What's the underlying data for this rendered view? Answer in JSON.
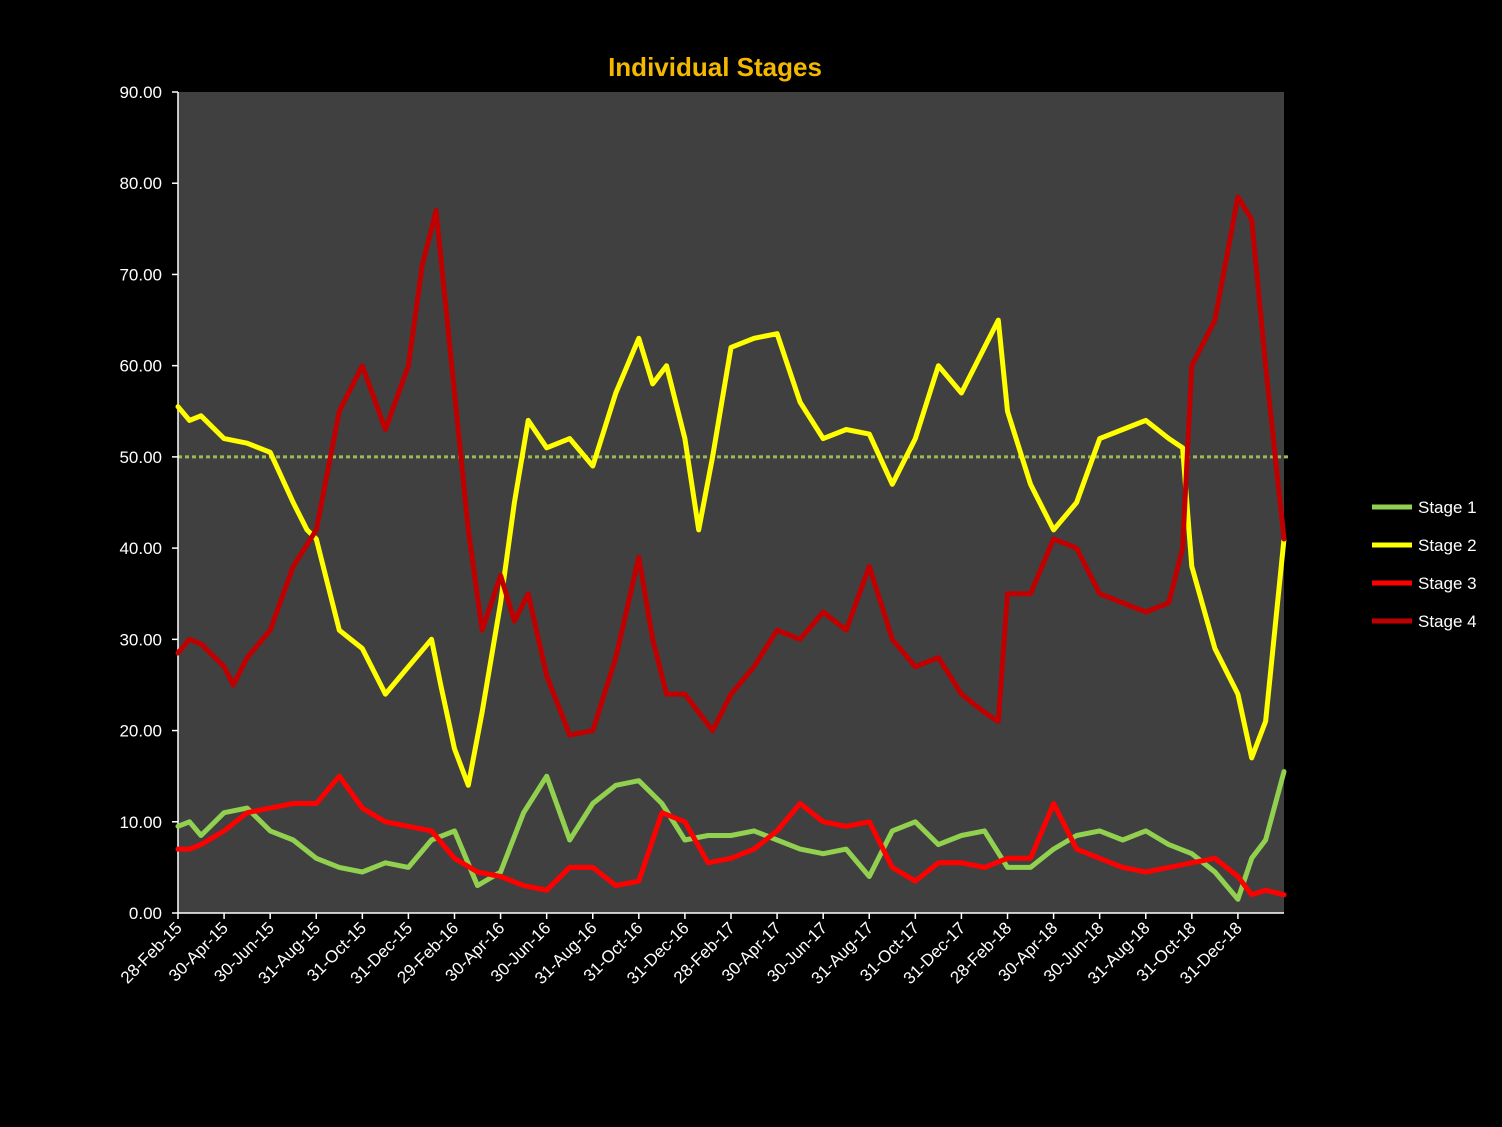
{
  "chart_data": {
    "type": "line",
    "title": "Individual Stages",
    "xlabel": "",
    "ylabel": "",
    "ylim": [
      0,
      90
    ],
    "y_ticks": [
      "0.00",
      "10.00",
      "20.00",
      "30.00",
      "40.00",
      "50.00",
      "60.00",
      "70.00",
      "80.00",
      "90.00"
    ],
    "x_tick_labels": [
      "28-Feb-15",
      "30-Apr-15",
      "30-Jun-15",
      "31-Aug-15",
      "31-Oct-15",
      "31-Dec-15",
      "29-Feb-16",
      "30-Apr-16",
      "30-Jun-16",
      "31-Aug-16",
      "31-Oct-16",
      "31-Dec-16",
      "28-Feb-17",
      "30-Apr-17",
      "30-Jun-17",
      "31-Aug-17",
      "31-Oct-17",
      "31-Dec-17",
      "28-Feb-18",
      "30-Apr-18",
      "30-Jun-18",
      "31-Aug-18",
      "31-Oct-18",
      "31-Dec-18"
    ],
    "reference_line": {
      "y": 50,
      "color": "#9bbb59",
      "style": "dotted"
    },
    "plot_background": "#404040",
    "grid": false,
    "legend_position": "right",
    "x_range": [
      0,
      24
    ],
    "series": [
      {
        "name": "Stage 1",
        "color": "#92d050",
        "x": [
          0,
          0.25,
          0.5,
          1,
          1.5,
          2,
          2.5,
          3,
          3.5,
          4,
          4.5,
          5,
          5.5,
          6,
          6.5,
          7,
          7.5,
          8,
          8.5,
          9,
          9.5,
          10,
          10.5,
          11,
          11.5,
          12,
          12.5,
          13,
          13.5,
          14,
          14.5,
          15,
          15.5,
          16,
          16.5,
          17,
          17.5,
          18,
          18.5,
          19,
          19.5,
          20,
          20.5,
          21,
          21.5,
          22,
          22.5,
          23,
          23.3,
          23.6,
          24
        ],
        "y": [
          9.5,
          10,
          8.5,
          11,
          11.5,
          9,
          8,
          6,
          5,
          4.5,
          5.5,
          5,
          8,
          9,
          3,
          4.5,
          11,
          15,
          8,
          12,
          14,
          14.5,
          12,
          8,
          8.5,
          8.5,
          9,
          8,
          7,
          6.5,
          7,
          4,
          9,
          10,
          7.5,
          8.5,
          9,
          5,
          5,
          7,
          8.5,
          9,
          8,
          9,
          7.5,
          6.5,
          4.5,
          1.5,
          6,
          8,
          15.5
        ]
      },
      {
        "name": "Stage 2",
        "color": "#ffff00",
        "x": [
          0,
          0.25,
          0.5,
          1,
          1.5,
          2,
          2.5,
          2.8,
          3,
          3.5,
          4,
          4.5,
          5,
          5.5,
          5.7,
          6,
          6.3,
          6.6,
          7,
          7.3,
          7.6,
          8,
          8.5,
          9,
          9.5,
          10,
          10.3,
          10.6,
          11,
          11.3,
          11.6,
          12,
          12.5,
          13,
          13.5,
          14,
          14.5,
          15,
          15.5,
          16,
          16.5,
          17,
          17.5,
          17.8,
          18,
          18.5,
          19,
          19.5,
          20,
          20.5,
          21,
          21.5,
          21.8,
          22,
          22.5,
          23,
          23.3,
          23.6,
          24
        ],
        "y": [
          55.5,
          54,
          54.5,
          52,
          51.5,
          50.5,
          45,
          42,
          41,
          31,
          29,
          24,
          27,
          30,
          25,
          18,
          14,
          22,
          34,
          45,
          54,
          51,
          52,
          49,
          57,
          63,
          58,
          60,
          52,
          42,
          50,
          62,
          63,
          63.5,
          56,
          52,
          53,
          52.5,
          47,
          52,
          60,
          57,
          62,
          65,
          55,
          47,
          42,
          45,
          52,
          53,
          54,
          52,
          51,
          38,
          29,
          24,
          17,
          21,
          41
        ]
      },
      {
        "name": "Stage 3",
        "color": "#ff0000",
        "x": [
          0,
          0.25,
          0.5,
          1,
          1.5,
          2,
          2.5,
          3,
          3.5,
          4,
          4.5,
          5,
          5.5,
          6,
          6.5,
          7,
          7.5,
          8,
          8.5,
          9,
          9.5,
          10,
          10.5,
          11,
          11.5,
          12,
          12.5,
          13,
          13.5,
          14,
          14.5,
          15,
          15.5,
          16,
          16.5,
          17,
          17.5,
          18,
          18.5,
          19,
          19.5,
          20,
          20.5,
          21,
          21.5,
          22,
          22.5,
          23,
          23.3,
          23.6,
          24
        ],
        "y": [
          7,
          7,
          7.5,
          9,
          11,
          11.5,
          12,
          12,
          15,
          11.5,
          10,
          9.5,
          9,
          6,
          4.5,
          4,
          3,
          2.5,
          5,
          5,
          3,
          3.5,
          11,
          10,
          5.5,
          6,
          7,
          9,
          12,
          10,
          9.5,
          10,
          5,
          3.5,
          5.5,
          5.5,
          5,
          6,
          6,
          12,
          7,
          6,
          5,
          4.5,
          5,
          5.5,
          6,
          4,
          2,
          2.5,
          2
        ]
      },
      {
        "name": "Stage 4",
        "color": "#c00000",
        "x": [
          0,
          0.25,
          0.5,
          1,
          1.2,
          1.5,
          2,
          2.5,
          3,
          3.5,
          4,
          4.5,
          5,
          5.3,
          5.6,
          6,
          6.3,
          6.6,
          7,
          7.3,
          7.6,
          8,
          8.5,
          9,
          9.5,
          10,
          10.3,
          10.6,
          11,
          11.3,
          11.6,
          12,
          12.5,
          13,
          13.5,
          14,
          14.5,
          15,
          15.5,
          16,
          16.5,
          17,
          17.5,
          17.8,
          18,
          18.5,
          19,
          19.5,
          20,
          20.5,
          21,
          21.5,
          21.8,
          22,
          22.5,
          23,
          23.3,
          23.6,
          24
        ],
        "y": [
          28.5,
          30,
          29.5,
          27,
          25,
          28,
          31,
          38,
          42,
          55,
          60,
          53,
          60,
          71,
          77,
          57,
          42,
          31,
          37,
          32,
          35,
          26,
          19.5,
          20,
          28,
          39,
          30,
          24,
          24,
          22,
          20,
          24,
          27,
          31,
          30,
          33,
          31,
          38,
          30,
          27,
          28,
          24,
          22,
          21,
          35,
          35,
          41,
          40,
          35,
          34,
          33,
          34,
          40,
          60,
          65,
          78.5,
          76,
          60,
          41
        ]
      }
    ]
  }
}
